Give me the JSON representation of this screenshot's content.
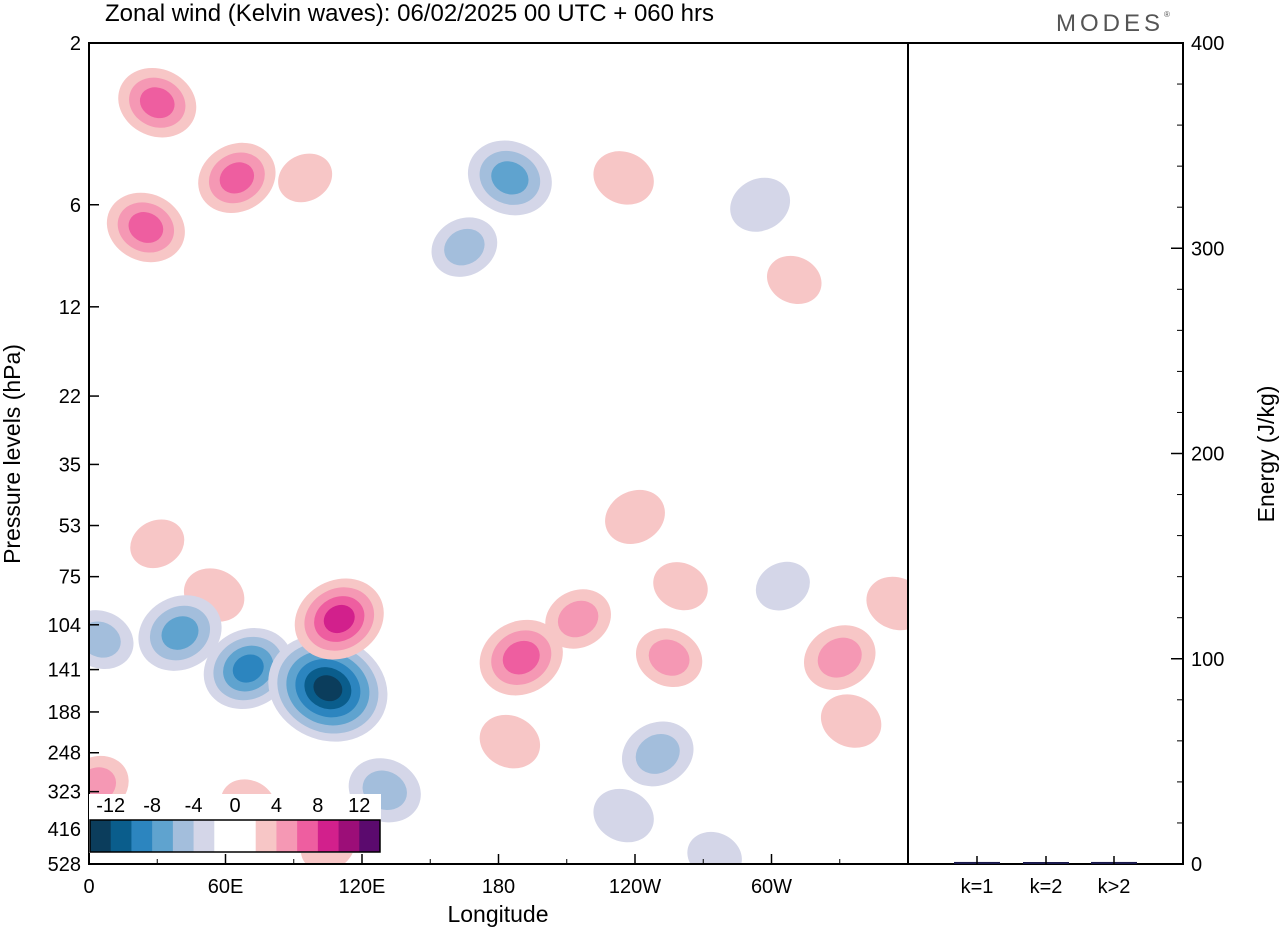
{
  "header": {
    "title": "Zonal wind (Kelvin waves):  06/02/2025  00 UTC  + 060 hrs",
    "brand": "MODES",
    "brand_mark": "®"
  },
  "colors": {
    "blue_scale": [
      "#0b3d5c",
      "#0a5d8c",
      "#2c85bf",
      "#5fa3cf",
      "#a3bedc",
      "#d4d6e8"
    ],
    "white": "#ffffff",
    "red_scale": [
      "#f7c6c6",
      "#f598b4",
      "#ee5ea0",
      "#d2208c",
      "#9c0e78",
      "#5b0a6e"
    ],
    "bar_color": "#1a1a4d"
  },
  "chart_data": [
    {
      "type": "heatmap",
      "title": "Zonal wind (Kelvin waves):  06/02/2025  00 UTC  + 060 hrs",
      "xlabel": "Longitude",
      "ylabel": "Pressure levels (hPa)",
      "x_ticks": [
        "0",
        "60E",
        "120E",
        "180",
        "120W",
        "60W"
      ],
      "x_tick_values": [
        0,
        60,
        120,
        180,
        240,
        300
      ],
      "xlim": [
        0,
        360
      ],
      "y_ticks": [
        "2",
        "6",
        "12",
        "22",
        "35",
        "53",
        "75",
        "104",
        "141",
        "188",
        "248",
        "323",
        "416",
        "528"
      ],
      "y_scale": "log-pressure (top = 2 hPa, bottom = 528 hPa)",
      "colorbar": {
        "labels": [
          "-12",
          "-8",
          "-4",
          "0",
          "4",
          "8",
          "12"
        ],
        "levels": [
          -14,
          -12,
          -10,
          -8,
          -6,
          -4,
          -2,
          2,
          4,
          6,
          8,
          10,
          12,
          14
        ]
      },
      "features": [
        {
          "lon": 30,
          "p": 3,
          "value": 6
        },
        {
          "lon": 65,
          "p": 5,
          "value": 6
        },
        {
          "lon": 25,
          "p": 7,
          "value": 6
        },
        {
          "lon": 95,
          "p": 5,
          "value": 2
        },
        {
          "lon": 185,
          "p": 5,
          "value": -7
        },
        {
          "lon": 165,
          "p": 8,
          "value": -4
        },
        {
          "lon": 235,
          "p": 5,
          "value": 3
        },
        {
          "lon": 295,
          "p": 6,
          "value": -3
        },
        {
          "lon": 310,
          "p": 10,
          "value": 2
        },
        {
          "lon": 240,
          "p": 50,
          "value": 3
        },
        {
          "lon": 260,
          "p": 80,
          "value": 2
        },
        {
          "lon": 30,
          "p": 60,
          "value": 2
        },
        {
          "lon": 55,
          "p": 85,
          "value": 3
        },
        {
          "lon": 40,
          "p": 110,
          "value": -7
        },
        {
          "lon": 5,
          "p": 115,
          "value": -4
        },
        {
          "lon": 70,
          "p": 140,
          "value": -8
        },
        {
          "lon": 105,
          "p": 160,
          "value": -13
        },
        {
          "lon": 110,
          "p": 100,
          "value": 8
        },
        {
          "lon": 130,
          "p": 320,
          "value": -5
        },
        {
          "lon": 190,
          "p": 130,
          "value": 7
        },
        {
          "lon": 185,
          "p": 230,
          "value": 3
        },
        {
          "lon": 215,
          "p": 100,
          "value": 4
        },
        {
          "lon": 255,
          "p": 130,
          "value": 4
        },
        {
          "lon": 330,
          "p": 130,
          "value": 5
        },
        {
          "lon": 335,
          "p": 200,
          "value": 3
        },
        {
          "lon": 250,
          "p": 250,
          "value": -5
        },
        {
          "lon": 235,
          "p": 380,
          "value": -3
        },
        {
          "lon": 3,
          "p": 310,
          "value": 4
        },
        {
          "lon": 70,
          "p": 350,
          "value": 2
        },
        {
          "lon": 105,
          "p": 470,
          "value": 2
        },
        {
          "lon": 275,
          "p": 500,
          "value": -2
        },
        {
          "lon": 305,
          "p": 80,
          "value": -2
        },
        {
          "lon": 355,
          "p": 90,
          "value": 3
        }
      ]
    },
    {
      "type": "bar",
      "ylabel": "Energy (J/kg)",
      "categories": [
        "k=1",
        "k=2",
        "k>2"
      ],
      "values": [
        1,
        0.5,
        1
      ],
      "ylim": [
        0,
        400
      ],
      "y_ticks": [
        "0",
        "100",
        "200",
        "300",
        "400"
      ]
    }
  ]
}
